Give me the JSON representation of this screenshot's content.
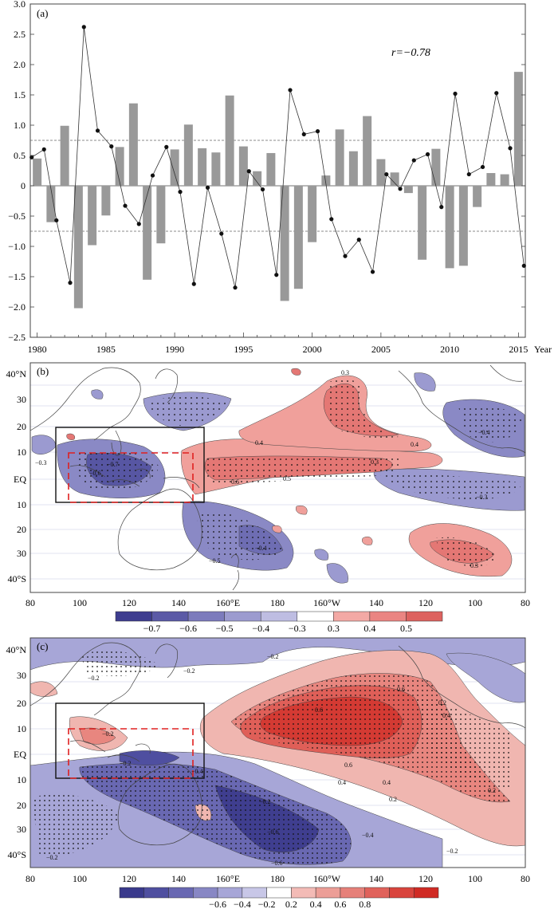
{
  "chart_data": [
    {
      "panel": "(a)",
      "type": "bar",
      "title": "",
      "xlabel": "Year",
      "ylabel": "",
      "annotation": "r=−0.78",
      "xlim": [
        1979.5,
        2015.5
      ],
      "ylim": [
        -2.5,
        3.0
      ],
      "yticks": [
        -2.5,
        -2.0,
        -1.5,
        -1.0,
        -0.5,
        0,
        0.5,
        1.0,
        1.5,
        2.0,
        2.5,
        3.0
      ],
      "ytick_labels": [
        "−2.5",
        "−2.0",
        "−1.5",
        "−1.0",
        "−0.5",
        "0",
        "0.5",
        "1.0",
        "1.5",
        "2.0",
        "2.5",
        "3.0"
      ],
      "xticks": [
        1980,
        1985,
        1990,
        1995,
        2000,
        2005,
        2010,
        2015
      ],
      "reference_lines": [
        0.75,
        -0.75
      ],
      "years": [
        1980,
        1981,
        1982,
        1983,
        1984,
        1985,
        1986,
        1987,
        1988,
        1989,
        1990,
        1991,
        1992,
        1993,
        1994,
        1995,
        1996,
        1997,
        1998,
        1999,
        2000,
        2001,
        2002,
        2003,
        2004,
        2005,
        2006,
        2007,
        2008,
        2009,
        2010,
        2011,
        2012,
        2013,
        2014,
        2015
      ],
      "series": [
        {
          "name": "bars",
          "type": "bar",
          "color": "#999999",
          "values": [
            0.45,
            -0.6,
            0.99,
            -2.02,
            -0.98,
            -0.49,
            0.64,
            1.36,
            -1.55,
            -0.95,
            0.6,
            1.01,
            0.62,
            0.55,
            1.49,
            0.65,
            0.24,
            0.54,
            -1.9,
            -1.7,
            -0.93,
            0.17,
            0.93,
            0.57,
            1.15,
            0.44,
            0.22,
            -0.12,
            -1.22,
            0.61,
            -1.36,
            -1.32,
            -0.35,
            0.21,
            0.19,
            1.88
          ]
        },
        {
          "name": "line",
          "type": "line",
          "color": "#333333",
          "x": [
            1979.6,
            1980.5,
            1981.4,
            1982.4,
            1983.4,
            1984.4,
            1985.4,
            1986.4,
            1987.4,
            1988.4,
            1989.4,
            1990.4,
            1991.4,
            1992.4,
            1993.4,
            1994.4,
            1995.4,
            1996.4,
            1997.4,
            1998.4,
            1999.4,
            2000.4,
            2001.4,
            2002.4,
            2003.4,
            2004.4,
            2005.4,
            2006.4,
            2007.4,
            2008.4,
            2009.4,
            2010.4,
            2011.4,
            2012.4,
            2013.4,
            2014.4,
            2015.4
          ],
          "values": [
            0.47,
            0.6,
            -0.57,
            -1.6,
            2.62,
            0.91,
            0.65,
            -0.33,
            -0.63,
            0.17,
            0.64,
            -0.1,
            -1.62,
            -0.03,
            -0.79,
            -1.68,
            0.24,
            -0.06,
            -1.47,
            1.58,
            0.85,
            0.9,
            -0.55,
            -1.16,
            -0.89,
            -1.42,
            0.19,
            -0.05,
            0.42,
            0.52,
            -0.35,
            1.52,
            0.19,
            0.31,
            1.53,
            0.62,
            -1.32
          ]
        }
      ]
    },
    {
      "panel": "(b)",
      "type": "heatmap",
      "xtick_labels": [
        "80",
        "100",
        "120",
        "140",
        "160°E",
        "180",
        "160°W",
        "140",
        "120",
        "100",
        "80"
      ],
      "ytick_labels": [
        "40°N",
        "30",
        "20",
        "10",
        "EQ",
        "10",
        "20",
        "30",
        "40°S"
      ],
      "colorbar_labels": [
        "−0.7",
        "−0.6",
        "−0.5",
        "−0.4",
        "−0.3",
        "0.3",
        "0.4",
        "0.5"
      ],
      "colorbar_colors": [
        "#3e3d8f",
        "#5b5aa6",
        "#7c7bbc",
        "#9c9bcf",
        "#bebde2",
        "#ffffff",
        "#f3a9a5",
        "#ea8582",
        "#dd625f"
      ],
      "contour_labels": [
        "0.3",
        "0.4",
        "0.5",
        "0.6",
        "−0.3",
        "−0.4",
        "−0.5",
        "−0.6",
        "−0.7"
      ]
    },
    {
      "panel": "(c)",
      "type": "heatmap",
      "xtick_labels": [
        "80",
        "100",
        "120",
        "140",
        "160°E",
        "180",
        "160°W",
        "140",
        "120",
        "100",
        "80"
      ],
      "ytick_labels": [
        "40°N",
        "30",
        "20",
        "10",
        "EQ",
        "10",
        "20",
        "30",
        "40°S"
      ],
      "colorbar_labels": [
        "−0.6",
        "−0.4",
        "−0.2",
        "0.2",
        "0.4",
        "0.6",
        "0.8"
      ],
      "colorbar_colors": [
        "#3a3a8c",
        "#4f4fa0",
        "#6968b2",
        "#8887c4",
        "#a7a6d7",
        "#c8c7e7",
        "#ffffff",
        "#f3bbb6",
        "#ec9e97",
        "#e68079",
        "#e0625b",
        "#d9443d",
        "#d02a24"
      ],
      "contour_labels": [
        "0.2",
        "0.4",
        "0.6",
        "0.8",
        "−0.2",
        "−0.4",
        "−0.6"
      ]
    }
  ]
}
